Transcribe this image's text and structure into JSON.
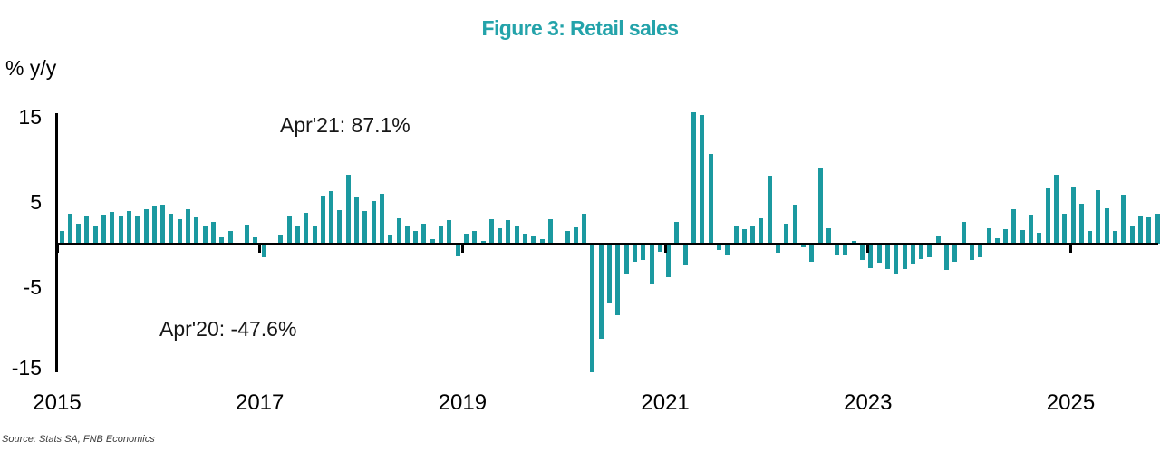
{
  "title": "Figure 3: Retail sales",
  "unit_label": "% y/y",
  "source": "Source: Stats SA, FNB Economics",
  "annotations": [
    {
      "text": "Apr'21: 87.1%"
    },
    {
      "text": "Apr'20: -47.6%"
    }
  ],
  "colors": {
    "bar": "#1b99a0",
    "title": "#24a3aa",
    "axis": "#000000",
    "annotation_text": "#161616"
  },
  "chart_data": {
    "type": "bar",
    "title": "Figure 3: Retail sales",
    "xlabel": "",
    "ylabel": "% y/y",
    "ylim": [
      -15,
      15
    ],
    "y_ticks": [
      "15",
      "5",
      "-5",
      "-15"
    ],
    "y_tick_values": [
      15,
      5,
      -5,
      -15
    ],
    "x_ticks": [
      "2015",
      "2017",
      "2019",
      "2021",
      "2023",
      "2025"
    ],
    "frequency": "monthly",
    "start_month": "2015-01",
    "end_month": "2025-11",
    "grid": false,
    "legend": "none",
    "clipped_points": [
      {
        "month": "2020-04",
        "value": -47.6,
        "shown_as": -15
      },
      {
        "month": "2021-04",
        "value": 87.1,
        "shown_as": 15.5
      },
      {
        "month": "2021-05",
        "value": 15.2,
        "shown_as": 15.2
      }
    ],
    "series": [
      {
        "name": "Retail sales % y/y",
        "values": [
          1.6,
          3.6,
          2.4,
          3.4,
          2.2,
          3.5,
          3.8,
          3.4,
          3.9,
          3.2,
          4.1,
          4.5,
          4.6,
          3.6,
          2.9,
          4.1,
          3.1,
          2.2,
          2.6,
          0.8,
          1.5,
          0.1,
          2.3,
          0.8,
          -1.5,
          -0.1,
          1.1,
          3.2,
          2.2,
          3.7,
          2.2,
          5.7,
          6.2,
          4.0,
          8.1,
          5.5,
          3.9,
          5.1,
          5.9,
          1.1,
          3.0,
          2.1,
          1.5,
          2.4,
          0.6,
          2.1,
          2.8,
          -1.4,
          1.2,
          1.5,
          0.4,
          2.9,
          1.9,
          2.8,
          2.2,
          1.2,
          0.9,
          0.6,
          2.9,
          -0.2,
          1.5,
          2.0,
          3.6,
          -47.6,
          -11.1,
          -6.9,
          -8.3,
          -3.5,
          -2.1,
          -1.9,
          -4.6,
          -0.9,
          -3.9,
          2.6,
          -2.5,
          87.1,
          15.2,
          10.6,
          -0.7,
          -1.3,
          2.1,
          1.8,
          2.2,
          3.0,
          8.0,
          -1.0,
          2.4,
          4.6,
          -0.4,
          -2.1,
          9.0,
          1.9,
          -1.2,
          -1.3,
          0.4,
          -1.9,
          -2.8,
          -2.2,
          -2.9,
          -3.4,
          -2.9,
          -2.3,
          -1.8,
          -1.5,
          0.9,
          -3.0,
          -2.1,
          2.6,
          -1.9,
          -1.5,
          1.9,
          0.7,
          1.8,
          4.1,
          1.7,
          3.5,
          1.3,
          6.5,
          8.1,
          3.6,
          6.8,
          4.7,
          1.6,
          6.3,
          4.2,
          1.6,
          5.8,
          2.2,
          3.2,
          3.1,
          3.6
        ]
      }
    ]
  }
}
